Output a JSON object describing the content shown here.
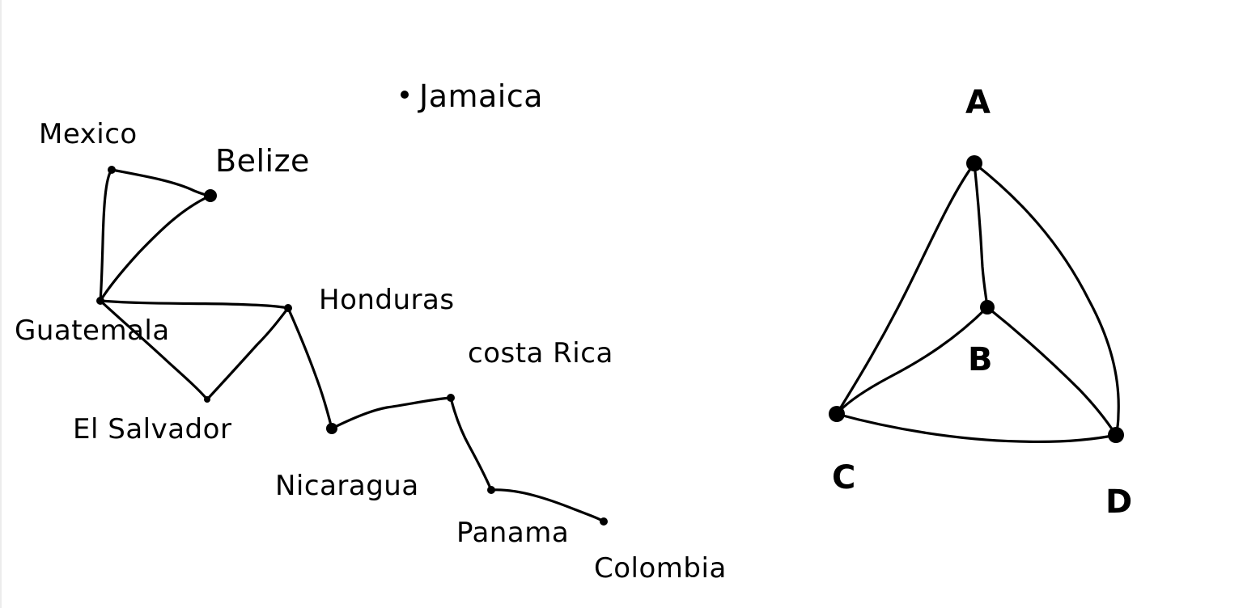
{
  "map_graph": {
    "nodes": [
      {
        "id": "mexico",
        "label": "Mexico"
      },
      {
        "id": "belize",
        "label": "Belize"
      },
      {
        "id": "guatemala",
        "label": "Guatemala"
      },
      {
        "id": "honduras",
        "label": "Honduras"
      },
      {
        "id": "el_salvador",
        "label": "El Salvador"
      },
      {
        "id": "nicaragua",
        "label": "Nicaragua"
      },
      {
        "id": "costa_rica",
        "label": "costa Rica"
      },
      {
        "id": "panama",
        "label": "Panama"
      },
      {
        "id": "colombia",
        "label": "Colombia"
      },
      {
        "id": "jamaica",
        "label": "Jamaica"
      }
    ],
    "edges": [
      [
        "mexico",
        "belize"
      ],
      [
        "mexico",
        "guatemala"
      ],
      [
        "belize",
        "guatemala"
      ],
      [
        "guatemala",
        "honduras"
      ],
      [
        "guatemala",
        "el_salvador"
      ],
      [
        "el_salvador",
        "honduras"
      ],
      [
        "honduras",
        "nicaragua"
      ],
      [
        "nicaragua",
        "costa_rica"
      ],
      [
        "costa_rica",
        "panama"
      ],
      [
        "panama",
        "colombia"
      ]
    ]
  },
  "k4_graph": {
    "nodes": [
      {
        "id": "A",
        "label": "A"
      },
      {
        "id": "B",
        "label": "B"
      },
      {
        "id": "C",
        "label": "C"
      },
      {
        "id": "D",
        "label": "D"
      }
    ],
    "edges": [
      [
        "A",
        "B"
      ],
      [
        "A",
        "C"
      ],
      [
        "A",
        "D"
      ],
      [
        "B",
        "C"
      ],
      [
        "B",
        "D"
      ],
      [
        "C",
        "D"
      ]
    ]
  },
  "colors": {
    "ink": "#000000",
    "background": "#ffffff"
  }
}
